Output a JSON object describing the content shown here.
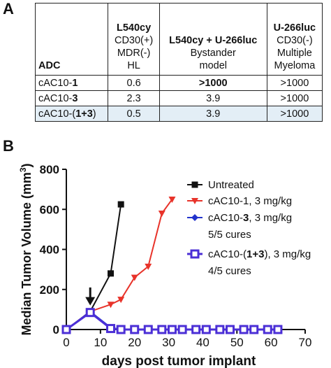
{
  "panel_a": {
    "letter": "A",
    "header_first": "ADC",
    "headers": [
      {
        "bold": "L540cy",
        "lines": [
          "CD30(+)",
          "MDR(-)",
          "HL"
        ]
      },
      {
        "bold": "L540cy + U-266luc",
        "lines": [
          "Bystander",
          "model"
        ]
      },
      {
        "bold": "U-266luc",
        "lines": [
          "CD30(-)",
          "Multiple",
          "Myeloma"
        ]
      }
    ],
    "rows": [
      {
        "adc_prefix": "cAC10-",
        "adc_bold": "1",
        "adc_suffix": "",
        "values": [
          "0.6",
          ">1000",
          ">1000"
        ],
        "bold_index": 1
      },
      {
        "adc_prefix": "cAC10-",
        "adc_bold": "3",
        "adc_suffix": "",
        "values": [
          "2.3",
          "3.9",
          ">1000"
        ],
        "bold_index": -1
      },
      {
        "adc_prefix": "cAC10-(",
        "adc_bold": "1+3",
        "adc_suffix": ")",
        "values": [
          "0.5",
          "3.9",
          ">1000"
        ],
        "bold_index": -1
      }
    ]
  },
  "panel_b": {
    "letter": "B"
  },
  "chart_data": {
    "type": "line",
    "xlabel": "days post tumor implant",
    "ylabel": "Median Tumor Volume (mm",
    "ylabel_sup": "3",
    "ylabel_suffix": ")",
    "xlim": [
      0,
      70
    ],
    "ylim": [
      0,
      800
    ],
    "xticks": [
      0,
      10,
      20,
      30,
      40,
      50,
      60,
      70
    ],
    "yticks": [
      0,
      200,
      400,
      600,
      800
    ],
    "grid": false,
    "legend_position": "top-right",
    "arrow_annotation": {
      "x": 7,
      "y_top": 210,
      "y_bottom": 120
    },
    "series": [
      {
        "name": "Untreated",
        "name_parts": [
          [
            "Untreated",
            false
          ]
        ],
        "note": "",
        "color": "#111111",
        "marker": "square",
        "x": [
          0,
          7,
          13,
          16
        ],
        "y": [
          0,
          90,
          280,
          625
        ]
      },
      {
        "name": "cAC10-1, 3 mg/kg",
        "name_parts": [
          [
            "cAC10-1, 3 mg/kg",
            false
          ]
        ],
        "note": "",
        "color": "#e8332a",
        "marker": "triangle-down",
        "x": [
          0,
          7,
          13,
          16,
          20,
          24,
          28,
          31
        ],
        "y": [
          0,
          90,
          125,
          150,
          260,
          315,
          580,
          650
        ]
      },
      {
        "name": "cAC10-3, 3 mg/kg",
        "name_parts": [
          [
            "cAC10-",
            false
          ],
          [
            "3",
            true
          ],
          [
            ", 3 mg/kg",
            false
          ]
        ],
        "note": "5/5 cures",
        "color": "#2233cc",
        "marker": "diamond",
        "x": [
          0,
          7,
          13,
          16,
          20,
          24,
          28,
          31,
          34,
          38,
          41,
          45,
          48,
          52,
          55,
          59,
          62
        ],
        "y": [
          0,
          90,
          10,
          0,
          0,
          0,
          0,
          0,
          0,
          0,
          0,
          0,
          0,
          0,
          0,
          0,
          0
        ]
      },
      {
        "name": "cAC10-(1+3), 3 mg/kg",
        "name_parts": [
          [
            "cAC10-(",
            false
          ],
          [
            "1+3",
            true
          ],
          [
            "), 3 mg/kg",
            false
          ]
        ],
        "note": "4/5 cures",
        "color": "#4b2fd6",
        "marker": "square-open",
        "x": [
          0,
          7,
          13,
          16,
          20,
          24,
          28,
          31,
          34,
          38,
          41,
          45,
          48,
          52,
          55,
          59,
          62
        ],
        "y": [
          0,
          85,
          5,
          0,
          0,
          0,
          0,
          0,
          0,
          0,
          0,
          0,
          0,
          0,
          0,
          0,
          0
        ]
      }
    ]
  }
}
